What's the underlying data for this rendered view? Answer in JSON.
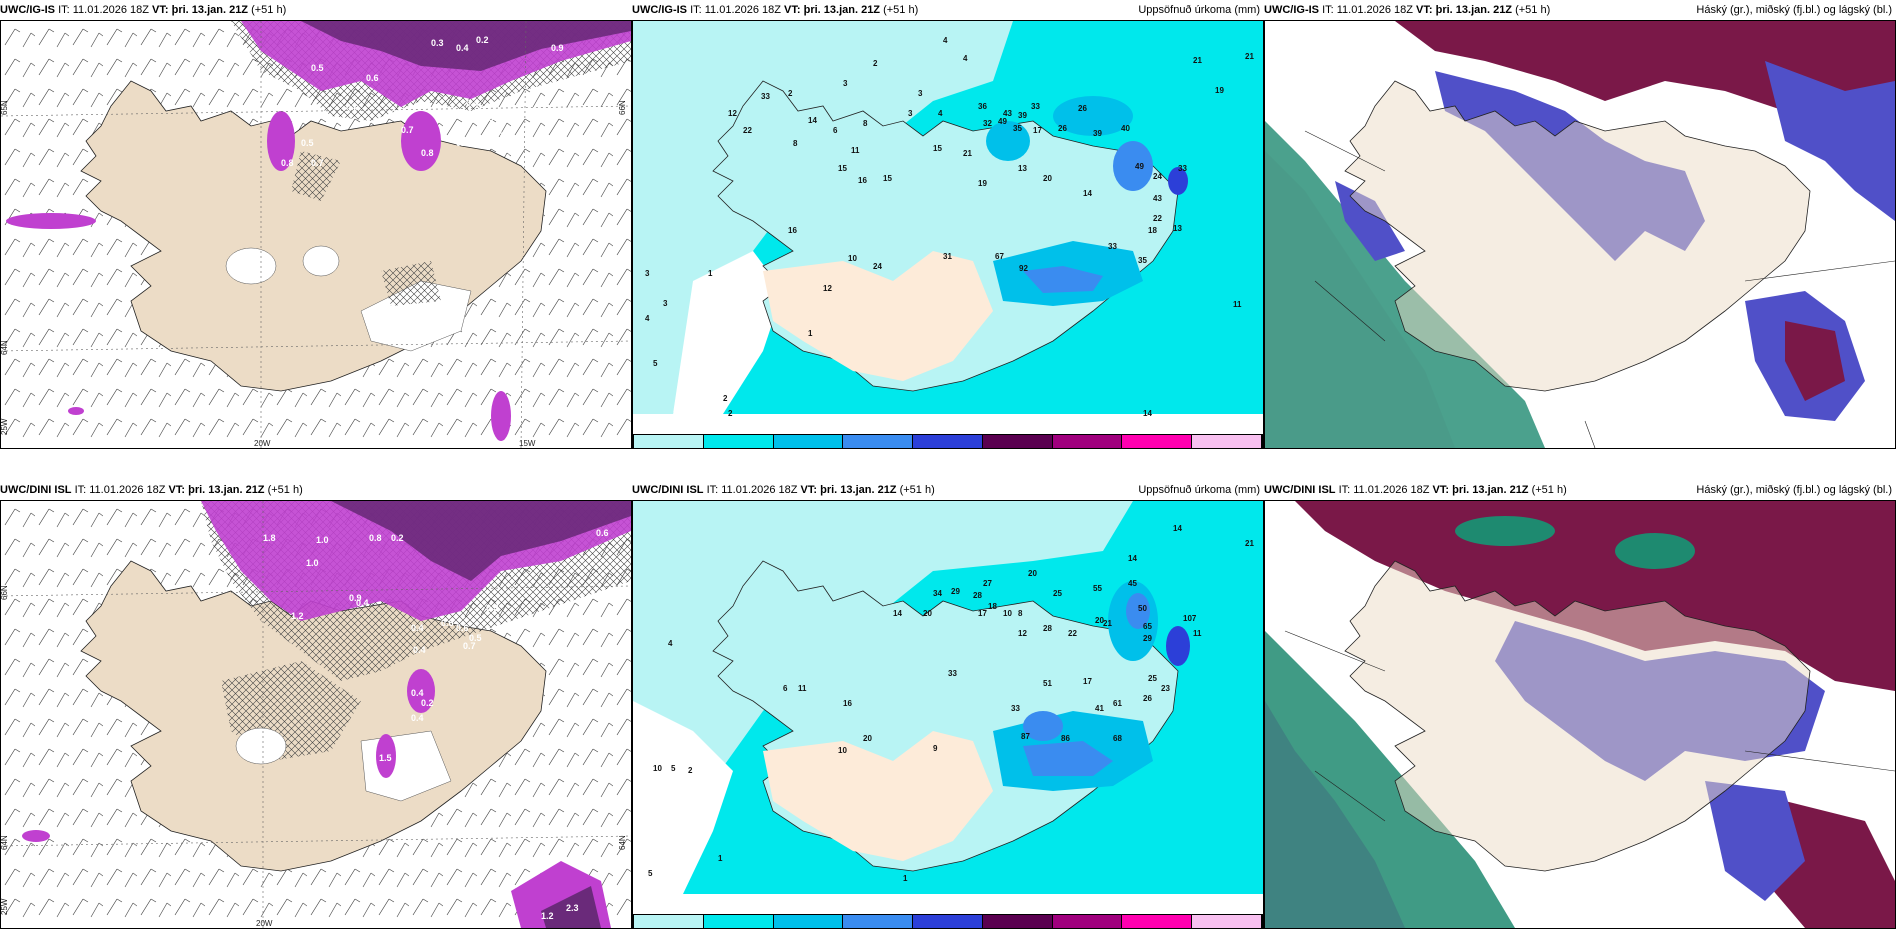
{
  "panels": [
    {
      "id": "p1",
      "source": "UWC/IG-IS",
      "it": "IT: 11.01.2026 18Z",
      "vt_label": "VT:",
      "vt": "þri. 13.jan. 21Z",
      "lead": "(+51 h)",
      "right": "",
      "type": "wind",
      "axis": {
        "lat_top": "65N",
        "lat_mid": "64N",
        "lon_left": "25W",
        "lon_mid": "20W",
        "lon_right": "15W",
        "lat_right": "66N"
      },
      "values": [
        "0.3",
        "0.4",
        "0.2",
        "0.5",
        "0.9",
        "0.5",
        "0.6",
        "0.5",
        "0.4",
        "0.3",
        "0.6",
        "0.7",
        "0.5",
        "0.8",
        "0.6",
        "0.3",
        "0.8",
        "0.7",
        "0.4",
        "0.6"
      ]
    },
    {
      "id": "p2",
      "source": "UWC/IG-IS",
      "it": "IT: 11.01.2026 18Z",
      "vt_label": "VT:",
      "vt": "þri. 13.jan. 21Z",
      "lead": "(+51 h)",
      "right": "Uppsöfnuð úrkoma (mm)",
      "type": "precip",
      "values": [
        "4",
        "4",
        "2",
        "3",
        "3",
        "2",
        "33",
        "21",
        "22",
        "12",
        "8",
        "6",
        "14",
        "8",
        "3",
        "4",
        "32",
        "49",
        "35",
        "36",
        "43",
        "39",
        "33",
        "17",
        "26",
        "39",
        "40",
        "26",
        "20",
        "21",
        "19",
        "13",
        "15",
        "16",
        "15",
        "11",
        "49",
        "15",
        "21",
        "19",
        "24",
        "43",
        "33",
        "22",
        "18",
        "14",
        "13",
        "11",
        "14",
        "16",
        "10",
        "24",
        "31",
        "92",
        "67",
        "33",
        "35",
        "12",
        "3",
        "2",
        "1",
        "2",
        "3",
        "4",
        "5",
        "1"
      ],
      "legend": [
        "1",
        "10",
        "25",
        "50",
        "75",
        "100",
        "150",
        "200",
        "400"
      ]
    },
    {
      "id": "p3",
      "source": "UWC/IG-IS",
      "it": "IT: 11.01.2026 18Z",
      "vt_label": "VT:",
      "vt": "þri. 13.jan. 21Z",
      "lead": "(+51 h)",
      "right": "Háský (gr.), miðský (fj.bl.) og lágský (bl.)",
      "type": "cloud"
    },
    {
      "id": "p4",
      "source": "UWC/DINI ISL",
      "it": "IT: 11.01.2026 18Z",
      "vt_label": "VT:",
      "vt": "þri. 13.jan. 21Z",
      "lead": "(+51 h)",
      "right": "",
      "type": "wind",
      "axis": {
        "lat_top": "66N",
        "lat_mid": "64N",
        "lon_left": "25W",
        "lon_mid": "20W",
        "lon_right": "",
        "lat_right": "64N"
      },
      "values": [
        "1.8",
        "1.0",
        "0.8",
        "0.2",
        "0.6",
        "1.0",
        "0.4",
        "0.3",
        "1.2",
        "0.4",
        "0.6",
        "0.5",
        "0.7",
        "0.9",
        "0.4",
        "0.6",
        "0.4",
        "0.2",
        "1.5",
        "0.4",
        "1.2",
        "2.3"
      ]
    },
    {
      "id": "p5",
      "source": "UWC/DINI ISL",
      "it": "IT: 11.01.2026 18Z",
      "vt_label": "VT:",
      "vt": "þri. 13.jan. 21Z",
      "lead": "(+51 h)",
      "right": "Uppsöfnuð úrkoma (mm)",
      "type": "precip",
      "values": [
        "14",
        "21",
        "20",
        "25",
        "55",
        "45",
        "50",
        "34",
        "29",
        "28",
        "27",
        "17",
        "18",
        "10",
        "8",
        "14",
        "20",
        "33",
        "28",
        "22",
        "21",
        "41",
        "29",
        "11",
        "51",
        "17",
        "25",
        "23",
        "26",
        "61",
        "65",
        "86",
        "87",
        "68",
        "33",
        "20",
        "10",
        "9",
        "6",
        "11",
        "10",
        "5",
        "2",
        "1",
        "4",
        "5",
        "1",
        "107",
        "14",
        "20",
        "12",
        "16"
      ],
      "legend": [
        "1",
        "10",
        "25",
        "50",
        "75",
        "100",
        "150",
        "200",
        "400"
      ]
    },
    {
      "id": "p6",
      "source": "UWC/DINI ISL",
      "it": "IT: 11.01.2026 18Z",
      "vt_label": "VT:",
      "vt": "þri. 13.jan. 21Z",
      "lead": "(+51 h)",
      "right": "Háský (gr.), miðský (fj.bl.) og lágský (bl.)",
      "type": "cloud"
    }
  ],
  "colors": {
    "land": "#ecdcc6",
    "sea": "#ffffff",
    "precip_colors": [
      "#b8f4f4",
      "#00e8ec",
      "#00c0ea",
      "#3a8cf0",
      "#2c3fd8",
      "#5a0050",
      "#a0007e",
      "#ff00b0",
      "#f8c0f0"
    ],
    "snow": "#c040d0",
    "snow_dark": "#6a2a7a",
    "high_cloud": "#7a1848",
    "mid_cloud": "#5050c8",
    "low_cloud": "#1e8a70"
  }
}
